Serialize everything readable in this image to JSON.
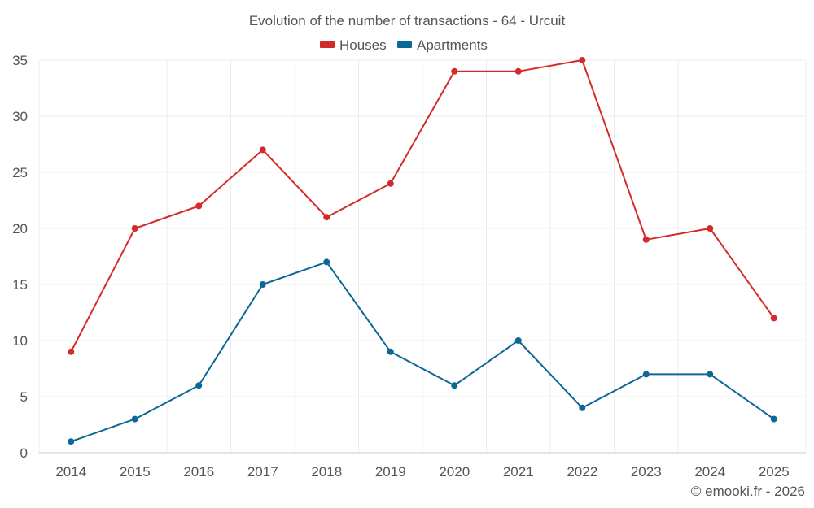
{
  "chart_data": {
    "type": "line",
    "title": "Evolution of the number of transactions - 64 - Urcuit",
    "categories": [
      "2014",
      "2015",
      "2016",
      "2017",
      "2018",
      "2019",
      "2020",
      "2021",
      "2022",
      "2023",
      "2024",
      "2025"
    ],
    "series": [
      {
        "name": "Houses",
        "color": "#d42a2a",
        "values": [
          9,
          20,
          22,
          27,
          21,
          24,
          34,
          34,
          35,
          19,
          20,
          12
        ]
      },
      {
        "name": "Apartments",
        "color": "#0b6796",
        "values": [
          1,
          3,
          6,
          15,
          17,
          9,
          6,
          10,
          4,
          7,
          7,
          3
        ]
      }
    ],
    "ylim": [
      0,
      35
    ],
    "yticks": [
      0,
      5,
      10,
      15,
      20,
      25,
      30,
      35
    ],
    "xlabel": "",
    "ylabel": "",
    "grid": true,
    "legend": "top-center"
  },
  "credit": "© emooki.fr - 2026"
}
